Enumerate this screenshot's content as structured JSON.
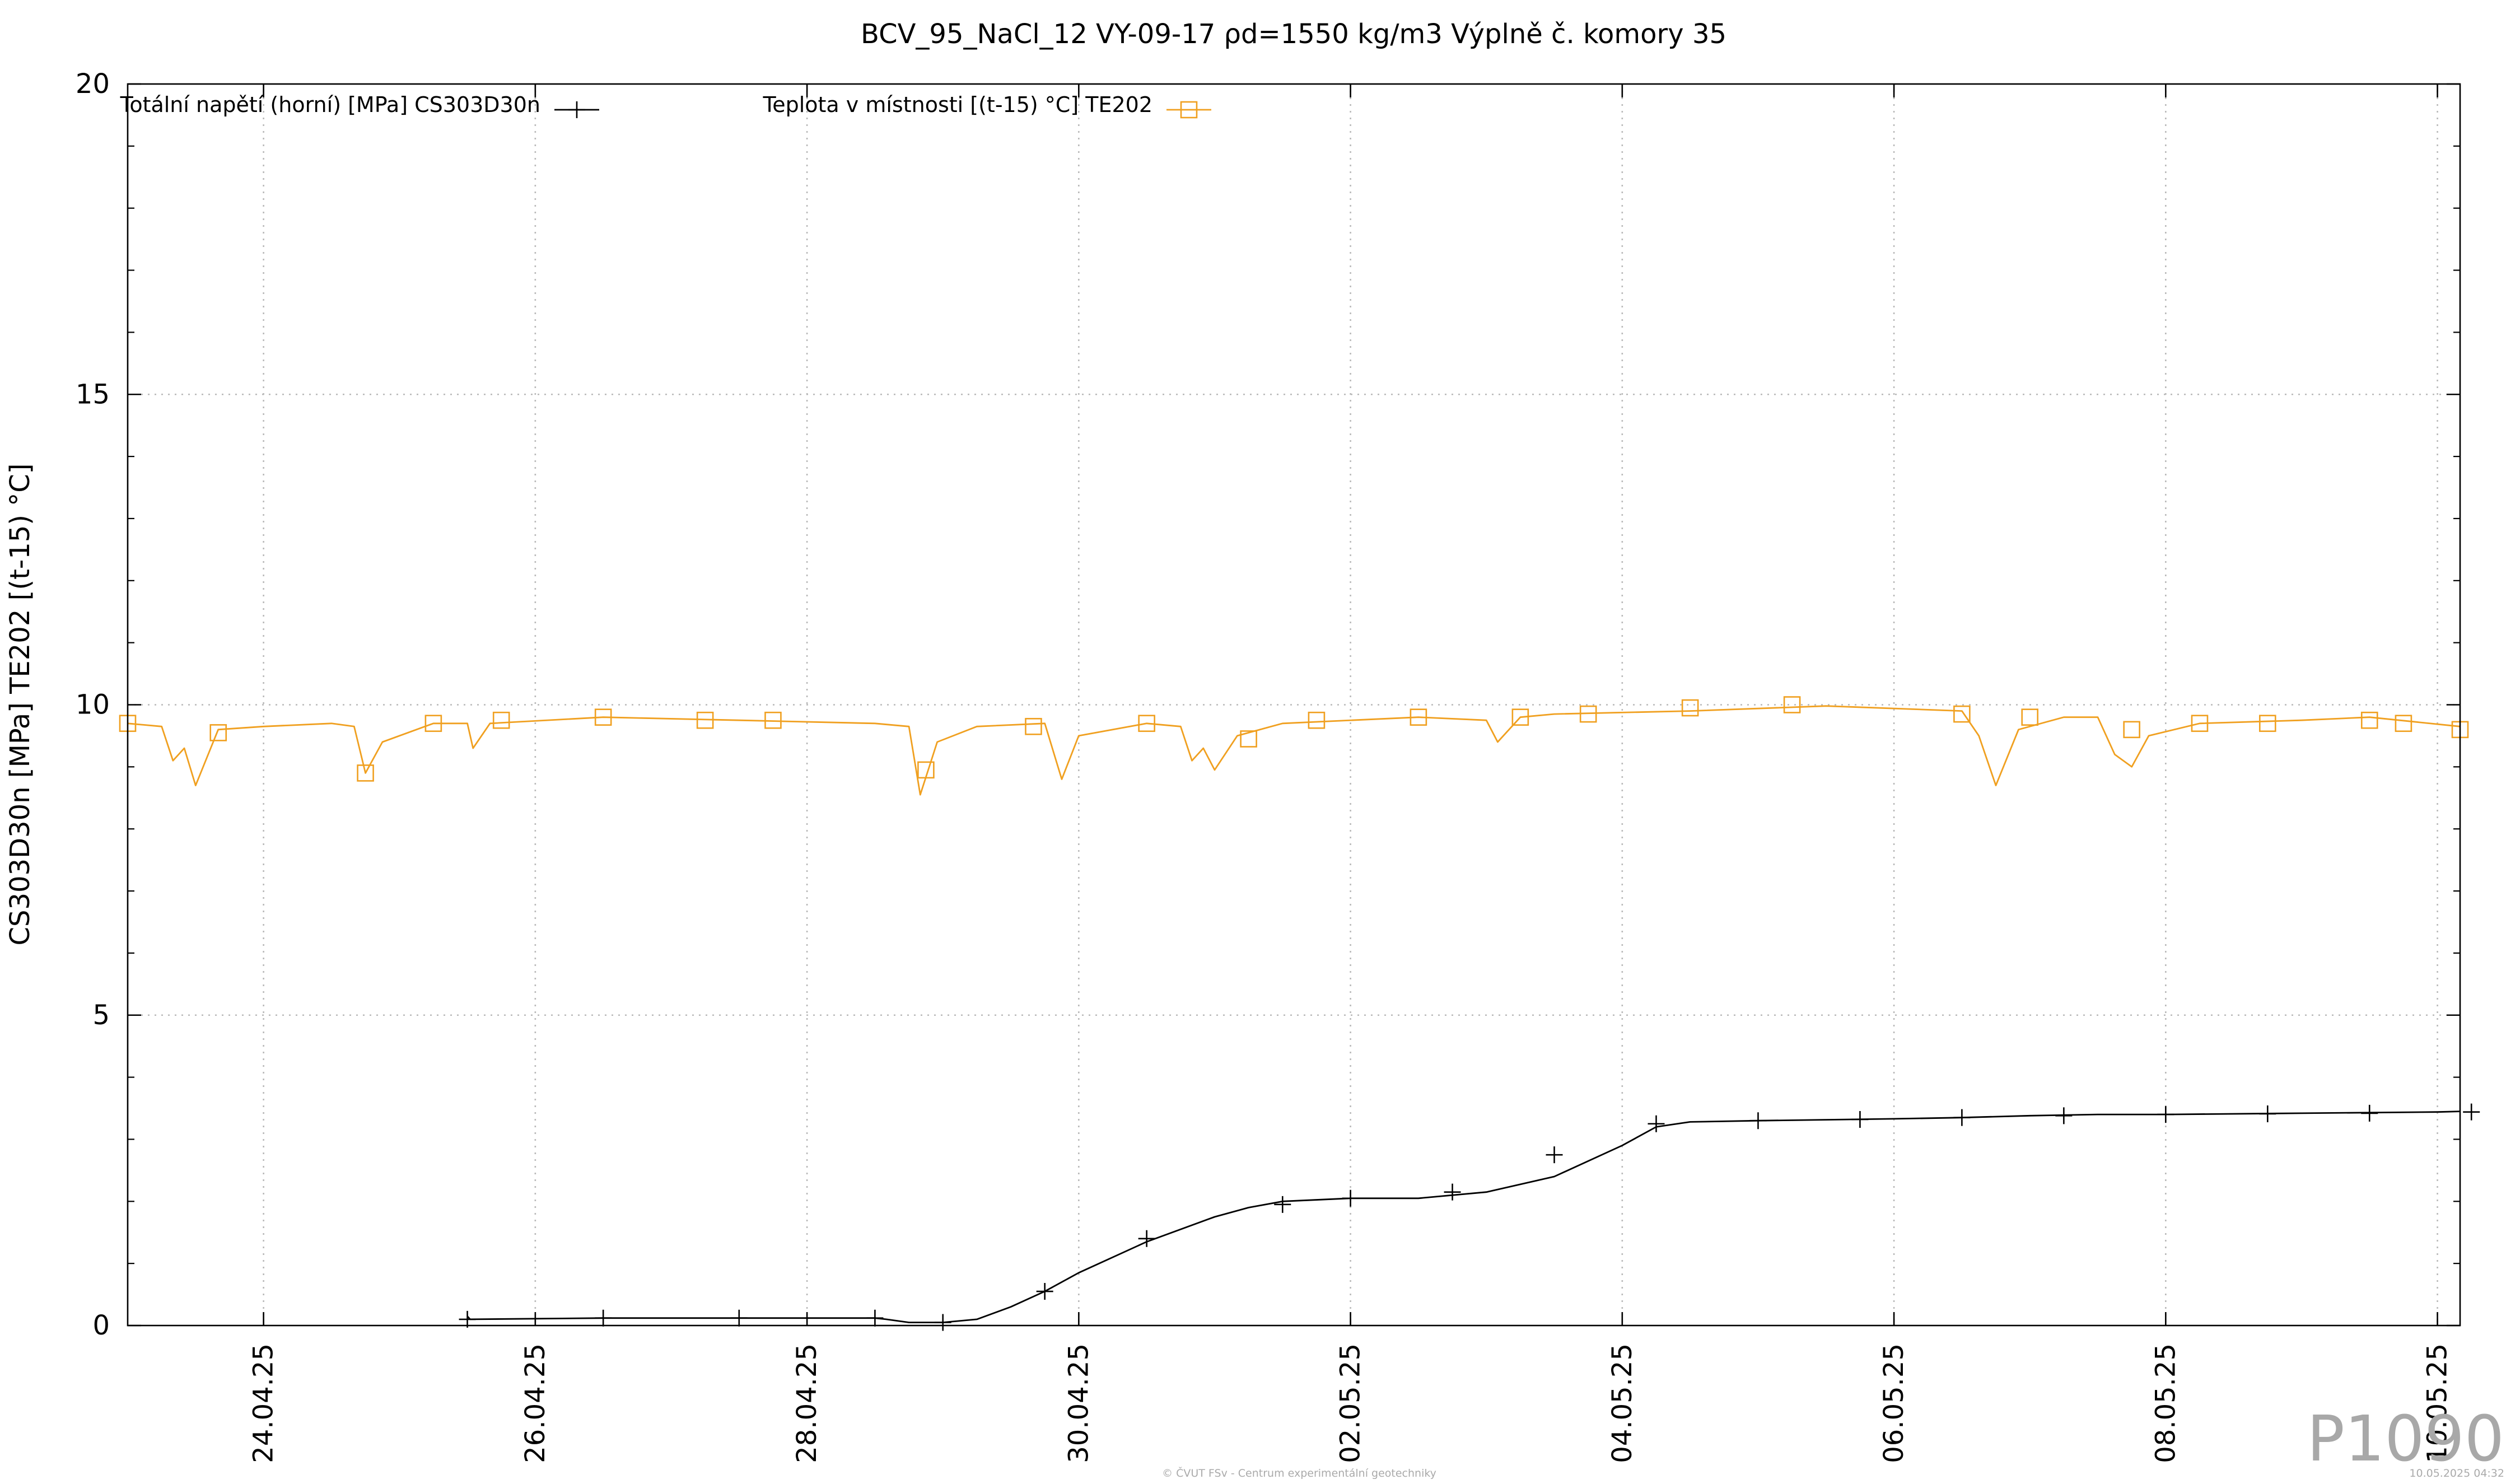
{
  "chart_data": {
    "type": "line",
    "title": "BCV_95_NaCl_12 VY-09-17  ρd=1550 kg/m3 Výplně č. komory 35",
    "ylabel": "CS303D30n [MPa] TE202 [(t-15) °C]",
    "xlabel": "",
    "ylim": [
      0,
      20
    ],
    "yticks": [
      "0",
      "5",
      "10",
      "15",
      "20"
    ],
    "xlim": [
      "2025-04-23T00:00",
      "2025-05-10T04:00"
    ],
    "xticks": [
      "24.04.25",
      "26.04.25",
      "28.04.25",
      "30.04.25",
      "02.05.25",
      "04.05.25",
      "06.05.25",
      "08.05.25",
      "10.05.25"
    ],
    "grid": true,
    "legend_placement": "top-left",
    "series": [
      {
        "name": "Totální napětí (horní) [MPa] CS303D30n",
        "color": "#000000",
        "marker": "plus",
        "points": [
          [
            "2025-04-25T12:00",
            0.15
          ],
          [
            "2025-04-25T12:30",
            0.1
          ],
          [
            "2025-04-26T12:00",
            0.12
          ],
          [
            "2025-04-27T12:00",
            0.12
          ],
          [
            "2025-04-28T12:00",
            0.12
          ],
          [
            "2025-04-28T14:00",
            0.1
          ],
          [
            "2025-04-28T18:00",
            0.05
          ],
          [
            "2025-04-29T00:00",
            0.05
          ],
          [
            "2025-04-29T06:00",
            0.1
          ],
          [
            "2025-04-29T12:00",
            0.3
          ],
          [
            "2025-04-29T18:00",
            0.55
          ],
          [
            "2025-04-30T00:00",
            0.85
          ],
          [
            "2025-04-30T12:00",
            1.35
          ],
          [
            "2025-05-01T00:00",
            1.75
          ],
          [
            "2025-05-01T06:00",
            1.9
          ],
          [
            "2025-05-01T12:00",
            2.0
          ],
          [
            "2025-05-02T00:00",
            2.05
          ],
          [
            "2025-05-02T12:00",
            2.05
          ],
          [
            "2025-05-03T00:00",
            2.15
          ],
          [
            "2025-05-03T12:00",
            2.4
          ],
          [
            "2025-05-04T00:00",
            2.9
          ],
          [
            "2025-05-04T06:00",
            3.2
          ],
          [
            "2025-05-04T12:00",
            3.28
          ],
          [
            "2025-05-05T00:00",
            3.3
          ],
          [
            "2025-05-06T00:00",
            3.33
          ],
          [
            "2025-05-06T12:00",
            3.35
          ],
          [
            "2025-05-07T00:00",
            3.38
          ],
          [
            "2025-05-07T12:00",
            3.4
          ],
          [
            "2025-05-08T00:00",
            3.4
          ],
          [
            "2025-05-09T00:00",
            3.42
          ],
          [
            "2025-05-10T00:00",
            3.44
          ],
          [
            "2025-05-10T04:00",
            3.45
          ]
        ],
        "marker_points": [
          [
            "2025-04-25T12:00",
            0.1
          ],
          [
            "2025-04-26T12:00",
            0.12
          ],
          [
            "2025-04-27T12:00",
            0.12
          ],
          [
            "2025-04-28T12:00",
            0.12
          ],
          [
            "2025-04-29T00:00",
            0.05
          ],
          [
            "2025-04-29T18:00",
            0.55
          ],
          [
            "2025-04-30T12:00",
            1.4
          ],
          [
            "2025-05-01T12:00",
            1.95
          ],
          [
            "2025-05-02T00:00",
            2.05
          ],
          [
            "2025-05-02T18:00",
            2.15
          ],
          [
            "2025-05-03T12:00",
            2.75
          ],
          [
            "2025-05-04T06:00",
            3.25
          ],
          [
            "2025-05-05T00:00",
            3.3
          ],
          [
            "2025-05-05T18:00",
            3.32
          ],
          [
            "2025-05-06T12:00",
            3.35
          ],
          [
            "2025-05-07T06:00",
            3.38
          ],
          [
            "2025-05-08T00:00",
            3.4
          ],
          [
            "2025-05-08T18:00",
            3.41
          ],
          [
            "2025-05-09T12:00",
            3.42
          ],
          [
            "2025-05-10T06:00",
            3.44
          ]
        ]
      },
      {
        "name": "Teplota v místnosti [(t-15) °C] TE202",
        "color": "#f0a020",
        "marker": "square",
        "points": [
          [
            "2025-04-23T00:00",
            9.7
          ],
          [
            "2025-04-23T06:00",
            9.65
          ],
          [
            "2025-04-23T08:00",
            9.1
          ],
          [
            "2025-04-23T10:00",
            9.3
          ],
          [
            "2025-04-23T12:00",
            8.7
          ],
          [
            "2025-04-23T16:00",
            9.6
          ],
          [
            "2025-04-24T00:00",
            9.65
          ],
          [
            "2025-04-24T12:00",
            9.7
          ],
          [
            "2025-04-24T16:00",
            9.65
          ],
          [
            "2025-04-24T18:00",
            8.9
          ],
          [
            "2025-04-24T21:00",
            9.4
          ],
          [
            "2025-04-25T06:00",
            9.7
          ],
          [
            "2025-04-25T12:00",
            9.7
          ],
          [
            "2025-04-25T13:00",
            9.3
          ],
          [
            "2025-04-25T16:00",
            9.7
          ],
          [
            "2025-04-26T12:00",
            9.8
          ],
          [
            "2025-04-27T12:00",
            9.75
          ],
          [
            "2025-04-28T12:00",
            9.7
          ],
          [
            "2025-04-28T18:00",
            9.65
          ],
          [
            "2025-04-28T20:00",
            8.55
          ],
          [
            "2025-04-28T23:00",
            9.4
          ],
          [
            "2025-04-29T06:00",
            9.65
          ],
          [
            "2025-04-29T18:00",
            9.7
          ],
          [
            "2025-04-29T21:00",
            8.8
          ],
          [
            "2025-04-30T00:00",
            9.5
          ],
          [
            "2025-04-30T12:00",
            9.7
          ],
          [
            "2025-04-30T18:00",
            9.65
          ],
          [
            "2025-04-30T20:00",
            9.1
          ],
          [
            "2025-04-30T22:00",
            9.3
          ],
          [
            "2025-05-01T00:00",
            8.95
          ],
          [
            "2025-05-01T04:00",
            9.5
          ],
          [
            "2025-05-01T12:00",
            9.7
          ],
          [
            "2025-05-02T12:00",
            9.8
          ],
          [
            "2025-05-03T00:00",
            9.75
          ],
          [
            "2025-05-03T02:00",
            9.4
          ],
          [
            "2025-05-03T06:00",
            9.8
          ],
          [
            "2025-05-03T12:00",
            9.85
          ],
          [
            "2025-05-04T12:00",
            9.9
          ],
          [
            "2025-05-05T12:00",
            9.98
          ],
          [
            "2025-05-06T12:00",
            9.9
          ],
          [
            "2025-05-06T15:00",
            9.5
          ],
          [
            "2025-05-06T18:00",
            8.7
          ],
          [
            "2025-05-06T22:00",
            9.6
          ],
          [
            "2025-05-07T06:00",
            9.8
          ],
          [
            "2025-05-07T12:00",
            9.8
          ],
          [
            "2025-05-07T15:00",
            9.2
          ],
          [
            "2025-05-07T18:00",
            9.0
          ],
          [
            "2025-05-07T21:00",
            9.5
          ],
          [
            "2025-05-08T06:00",
            9.7
          ],
          [
            "2025-05-09T00:00",
            9.75
          ],
          [
            "2025-05-09T12:00",
            9.8
          ],
          [
            "2025-05-10T04:00",
            9.65
          ]
        ],
        "marker_points": [
          [
            "2025-04-23T00:00",
            9.7
          ],
          [
            "2025-04-23T16:00",
            9.55
          ],
          [
            "2025-04-24T18:00",
            8.9
          ],
          [
            "2025-04-25T06:00",
            9.7
          ],
          [
            "2025-04-25T18:00",
            9.75
          ],
          [
            "2025-04-26T12:00",
            9.8
          ],
          [
            "2025-04-27T06:00",
            9.75
          ],
          [
            "2025-04-27T18:00",
            9.75
          ],
          [
            "2025-04-28T21:00",
            8.95
          ],
          [
            "2025-04-29T16:00",
            9.65
          ],
          [
            "2025-04-30T12:00",
            9.7
          ],
          [
            "2025-05-01T06:00",
            9.45
          ],
          [
            "2025-05-01T18:00",
            9.75
          ],
          [
            "2025-05-02T12:00",
            9.8
          ],
          [
            "2025-05-03T06:00",
            9.8
          ],
          [
            "2025-05-03T18:00",
            9.85
          ],
          [
            "2025-05-04T12:00",
            9.95
          ],
          [
            "2025-05-05T06:00",
            10.0
          ],
          [
            "2025-05-06T12:00",
            9.85
          ],
          [
            "2025-05-07T00:00",
            9.8
          ],
          [
            "2025-05-07T18:00",
            9.6
          ],
          [
            "2025-05-08T06:00",
            9.7
          ],
          [
            "2025-05-08T18:00",
            9.7
          ],
          [
            "2025-05-09T12:00",
            9.75
          ],
          [
            "2025-05-09T18:00",
            9.7
          ],
          [
            "2025-05-10T04:00",
            9.6
          ]
        ]
      }
    ]
  },
  "watermark": "P1090",
  "footer_left": "© ČVUT FSv - Centrum experimentální geotechniky",
  "footer_right": "10.05.2025 04:32"
}
